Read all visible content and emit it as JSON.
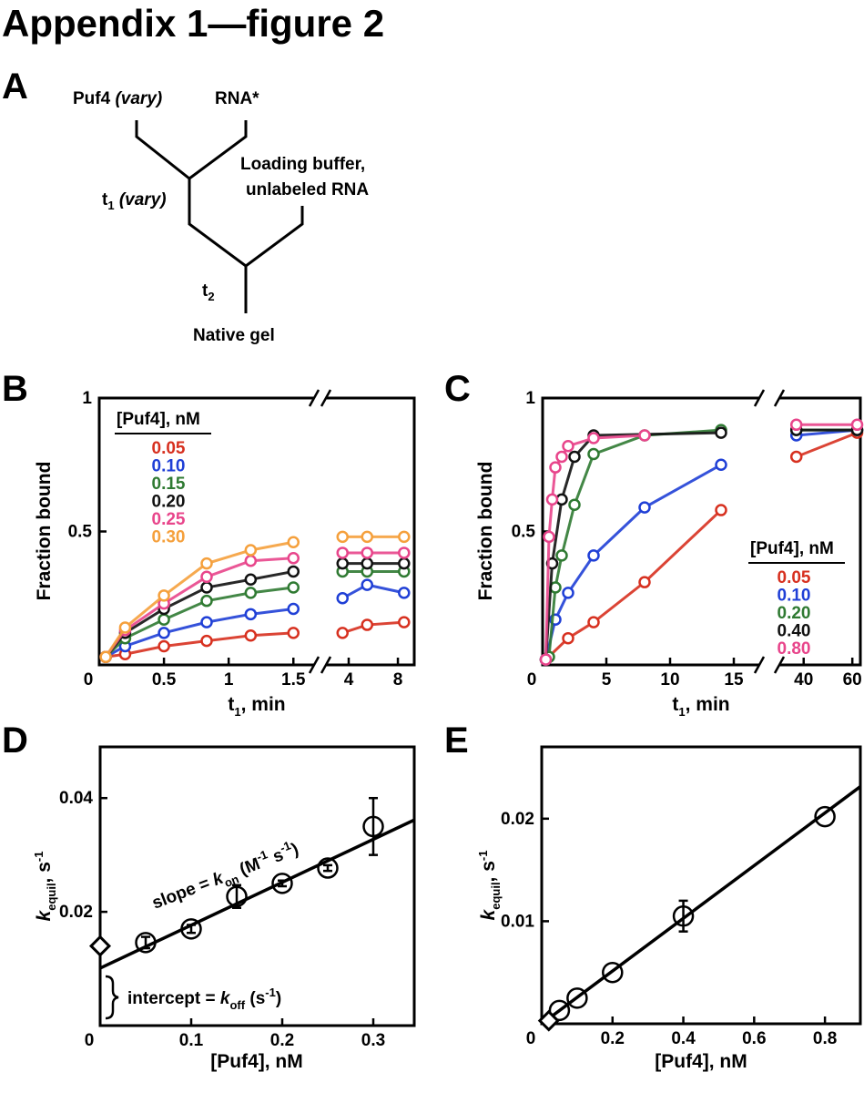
{
  "figure_title": "Appendix 1—figure 2",
  "panel_labels": [
    "A",
    "B",
    "C",
    "D",
    "E"
  ],
  "diagram": {
    "puf4": "Puf4",
    "puf4_note": "(vary)",
    "rna": "RNA*",
    "chase_line1": "Loading buffer,",
    "chase_line2": "unlabeled RNA",
    "t1": "t",
    "t1_sub": "1",
    "t1_note": "(vary)",
    "t2": "t",
    "t2_sub": "2",
    "readout": "Native gel"
  },
  "chart_data": [
    {
      "type": "line",
      "xlabel": [
        {
          "text": "t",
          "style": "normal"
        },
        {
          "text": "1",
          "style": "sub"
        },
        {
          "text": ", min",
          "style": "normal"
        }
      ],
      "ylabel": [
        {
          "text": "Fraction bound",
          "style": "normal"
        }
      ],
      "x_segments": [
        {
          "xlim": [
            0,
            1.66
          ],
          "xticks": [
            0,
            0.5,
            1,
            1.5
          ]
        },
        {
          "xlim": [
            2.15,
            9.33
          ],
          "xticks": [
            4,
            8
          ]
        }
      ],
      "ylim": [
        0,
        1
      ],
      "yticks": [
        0.5,
        1
      ],
      "legend": "upper left",
      "legend_title": "[Puf4], nM",
      "series": [
        {
          "name": "0.05",
          "color": "#d7301f",
          "x": [
            0.05,
            0.2,
            0.5,
            0.83,
            1.17,
            1.5,
            3.5,
            5.5,
            8.5
          ],
          "values": [
            0.03,
            0.04,
            0.07,
            0.09,
            0.11,
            0.12,
            0.12,
            0.15,
            0.16
          ]
        },
        {
          "name": "0.10",
          "color": "#1f3fd6",
          "x": [
            0.05,
            0.2,
            0.5,
            0.83,
            1.17,
            1.5,
            3.5,
            5.5,
            8.5
          ],
          "values": [
            0.03,
            0.07,
            0.12,
            0.16,
            0.19,
            0.21,
            0.25,
            0.3,
            0.27
          ]
        },
        {
          "name": "0.15",
          "color": "#2f7a32",
          "x": [
            0.05,
            0.2,
            0.5,
            0.83,
            1.17,
            1.5,
            3.5,
            5.5,
            8.5
          ],
          "values": [
            0.03,
            0.1,
            0.17,
            0.24,
            0.27,
            0.29,
            0.35,
            0.35,
            0.35
          ]
        },
        {
          "name": "0.20",
          "color": "#111111",
          "x": [
            0.05,
            0.2,
            0.5,
            0.83,
            1.17,
            1.5,
            3.5,
            5.5,
            8.5
          ],
          "values": [
            0.03,
            0.12,
            0.21,
            0.29,
            0.32,
            0.35,
            0.38,
            0.38,
            0.38
          ]
        },
        {
          "name": "0.25",
          "color": "#e8458b",
          "x": [
            0.05,
            0.2,
            0.5,
            0.83,
            1.17,
            1.5,
            3.5,
            5.5,
            8.5
          ],
          "values": [
            0.03,
            0.13,
            0.23,
            0.33,
            0.39,
            0.4,
            0.42,
            0.42,
            0.42
          ]
        },
        {
          "name": "0.30",
          "color": "#f5a03c",
          "x": [
            0.05,
            0.2,
            0.5,
            0.83,
            1.17,
            1.5,
            3.5,
            5.5,
            8.5
          ],
          "values": [
            0.03,
            0.14,
            0.26,
            0.38,
            0.43,
            0.46,
            0.48,
            0.48,
            0.48
          ]
        }
      ]
    },
    {
      "type": "line",
      "xlabel": [
        {
          "text": "t",
          "style": "normal"
        },
        {
          "text": "1",
          "style": "sub"
        },
        {
          "text": ", min",
          "style": "normal"
        }
      ],
      "ylabel": [
        {
          "text": "Fraction bound",
          "style": "normal"
        }
      ],
      "x_segments": [
        {
          "xlim": [
            0,
            17
          ],
          "xticks": [
            0,
            5,
            10,
            15
          ]
        },
        {
          "xlim": [
            30,
            63.3
          ],
          "xticks": [
            40,
            60
          ]
        }
      ],
      "ylim": [
        0,
        1
      ],
      "yticks": [
        0.5,
        1
      ],
      "legend": "lower right",
      "legend_title": "[Puf4], nM",
      "series": [
        {
          "name": "0.05",
          "color": "#d7301f",
          "x": [
            0.25,
            2,
            4,
            8,
            14,
            37,
            62
          ],
          "values": [
            0.02,
            0.1,
            0.16,
            0.31,
            0.58,
            0.78,
            0.87
          ]
        },
        {
          "name": "0.10",
          "color": "#1f3fd6",
          "x": [
            0.25,
            1,
            2,
            4,
            8,
            14,
            37,
            62
          ],
          "values": [
            0.02,
            0.17,
            0.27,
            0.41,
            0.59,
            0.75,
            0.86,
            0.88
          ]
        },
        {
          "name": "0.20",
          "color": "#2f7a32",
          "x": [
            0.5,
            1,
            1.5,
            2.5,
            4,
            8,
            14,
            37,
            62
          ],
          "values": [
            0.03,
            0.29,
            0.41,
            0.6,
            0.79,
            0.86,
            0.88,
            0.88,
            0.88
          ]
        },
        {
          "name": "0.40",
          "color": "#111111",
          "x": [
            0.25,
            0.75,
            1.5,
            2.5,
            4,
            14,
            37,
            62
          ],
          "values": [
            0.02,
            0.38,
            0.62,
            0.78,
            0.86,
            0.87,
            0.88,
            0.88
          ]
        },
        {
          "name": "0.80",
          "color": "#e8458b",
          "x": [
            0.25,
            0.5,
            0.75,
            1,
            1.5,
            2,
            4,
            8,
            37,
            62
          ],
          "values": [
            0.02,
            0.48,
            0.62,
            0.74,
            0.78,
            0.82,
            0.85,
            0.86,
            0.9,
            0.9
          ]
        }
      ]
    },
    {
      "type": "scatter",
      "xlabel": [
        {
          "text": "[Puf4], nM",
          "style": "normal"
        }
      ],
      "ylabel": [
        {
          "text": "k",
          "style": "italic"
        },
        {
          "text": "equil",
          "style": "sub"
        },
        {
          "text": ", s",
          "style": "normal"
        },
        {
          "text": "-1",
          "style": "sup"
        }
      ],
      "xlim": [
        0,
        0.345
      ],
      "xticks": [
        0,
        0.1,
        0.2,
        0.3
      ],
      "ylim": [
        0,
        0.049
      ],
      "yticks": [
        0.02,
        0.04
      ],
      "x": [
        0.05,
        0.1,
        0.15,
        0.2,
        0.25,
        0.3
      ],
      "values": [
        0.0146,
        0.017,
        0.0227,
        0.025,
        0.0277,
        0.035
      ],
      "errors": [
        0.001,
        0.0007,
        0.002,
        0.0005,
        0.0005,
        0.005
      ],
      "koff_point": {
        "x": 0,
        "y": 0.014
      },
      "fit": {
        "intercept": 0.0101,
        "slope": 0.0755
      },
      "annotations": [
        [
          {
            "text": "slope = ",
            "style": "normal"
          },
          {
            "text": "k",
            "style": "italic"
          },
          {
            "text": "on",
            "style": "sub"
          },
          {
            "text": " (M",
            "style": "normal"
          },
          {
            "text": "-1",
            "style": "sup"
          },
          {
            "text": " s",
            "style": "normal"
          },
          {
            "text": "-1",
            "style": "sup"
          },
          {
            "text": ")",
            "style": "normal"
          }
        ],
        [
          {
            "text": "intercept = ",
            "style": "normal"
          },
          {
            "text": "k",
            "style": "italic"
          },
          {
            "text": "off",
            "style": "sub"
          },
          {
            "text": " (s",
            "style": "normal"
          },
          {
            "text": "-1",
            "style": "sup"
          },
          {
            "text": ")",
            "style": "normal"
          }
        ]
      ]
    },
    {
      "type": "scatter",
      "xlabel": [
        {
          "text": "[Puf4], nM",
          "style": "normal"
        }
      ],
      "ylabel": [
        {
          "text": "k",
          "style": "italic"
        },
        {
          "text": "equil",
          "style": "sub"
        },
        {
          "text": ", s",
          "style": "normal"
        },
        {
          "text": "-1",
          "style": "sup"
        }
      ],
      "xlim": [
        0,
        0.9
      ],
      "xticks": [
        0,
        0.2,
        0.4,
        0.6,
        0.8
      ],
      "ylim": [
        0,
        0.027
      ],
      "yticks": [
        0.01,
        0.02
      ],
      "x": [
        0.05,
        0.1,
        0.2,
        0.4,
        0.8
      ],
      "values": [
        0.0013,
        0.0025,
        0.005,
        0.0105,
        0.0202
      ],
      "errors": [
        0,
        0,
        0,
        0.0015,
        0
      ],
      "koff_point": {
        "x": 0.02,
        "y": 0.0003
      },
      "fit": {
        "intercept": 0,
        "slope": 0.0257
      }
    }
  ]
}
